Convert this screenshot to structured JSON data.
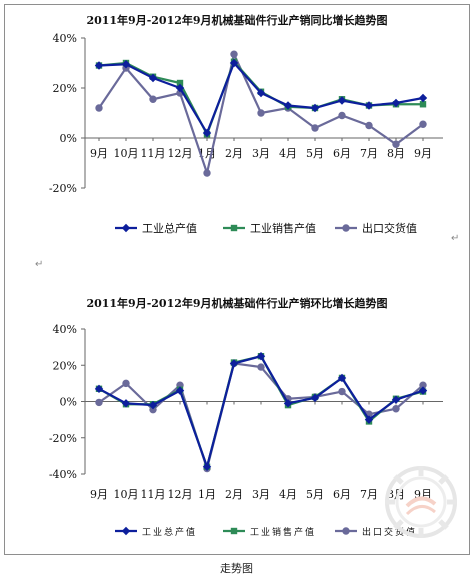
{
  "caption": "走势图",
  "paragraph_mark": "↵",
  "chart_data": [
    {
      "type": "line",
      "title": "2011年9月-2012年9月机械基础件行业产销同比增长趋势图",
      "categories": [
        "9月",
        "10月",
        "11月",
        "12月",
        "1月",
        "2月",
        "3月",
        "4月",
        "5月",
        "6月",
        "7月",
        "8月",
        "9月"
      ],
      "ylim": [
        -20,
        40
      ],
      "yticks": [
        "-20%",
        "0%",
        "20%",
        "40%"
      ],
      "ytick_values": [
        -20,
        0,
        20,
        40
      ],
      "grid": false,
      "legend_position": "bottom",
      "series": [
        {
          "name": "工业总产值",
          "color": "#0d1f9c",
          "marker": "diamond",
          "values": [
            29,
            29.5,
            24,
            20,
            2,
            30,
            18,
            13,
            12,
            15,
            13,
            14,
            16
          ]
        },
        {
          "name": "工业销售产值",
          "color": "#2e8b57",
          "marker": "square",
          "values": [
            29,
            30,
            24.5,
            22,
            1.5,
            30.5,
            18.5,
            12.5,
            12,
            15.5,
            13,
            13.5,
            13.5
          ]
        },
        {
          "name": "出口交货值",
          "color": "#6a6a9a",
          "marker": "circle",
          "values": [
            12,
            28,
            15.5,
            18,
            -14,
            33.5,
            10,
            12,
            4,
            9,
            5,
            -2.5,
            5.5
          ]
        }
      ]
    },
    {
      "type": "line",
      "title": "2011年9月-2012年9月机械基础件行业产销环比增长趋势图",
      "categories": [
        "9月",
        "10月",
        "11月",
        "12月",
        "1月",
        "2月",
        "3月",
        "4月",
        "5月",
        "6月",
        "7月",
        "8月",
        "9月"
      ],
      "ylim": [
        -40,
        40
      ],
      "yticks": [
        "-40%",
        "-20%",
        "0%",
        "20%",
        "40%"
      ],
      "ytick_values": [
        -40,
        -20,
        0,
        20,
        40
      ],
      "grid": false,
      "legend_position": "bottom",
      "series": [
        {
          "name": "工业总产值",
          "color": "#0d1f9c",
          "marker": "diamond",
          "values": [
            7,
            -1,
            -2,
            6,
            -36,
            21,
            25,
            -1,
            2,
            13,
            -10,
            1,
            6
          ]
        },
        {
          "name": "工业销售产值",
          "color": "#2e8b57",
          "marker": "square",
          "values": [
            7,
            -1.5,
            -1.5,
            6.5,
            -36,
            21.5,
            25,
            -2,
            2.5,
            13,
            -11,
            1.5,
            5.5
          ]
        },
        {
          "name": "出口交货值",
          "color": "#6a6a9a",
          "marker": "circle",
          "values": [
            -0.5,
            10,
            -4.5,
            9,
            -37,
            21,
            19,
            1.5,
            2.5,
            5.5,
            -7,
            -4,
            9
          ]
        }
      ]
    }
  ]
}
